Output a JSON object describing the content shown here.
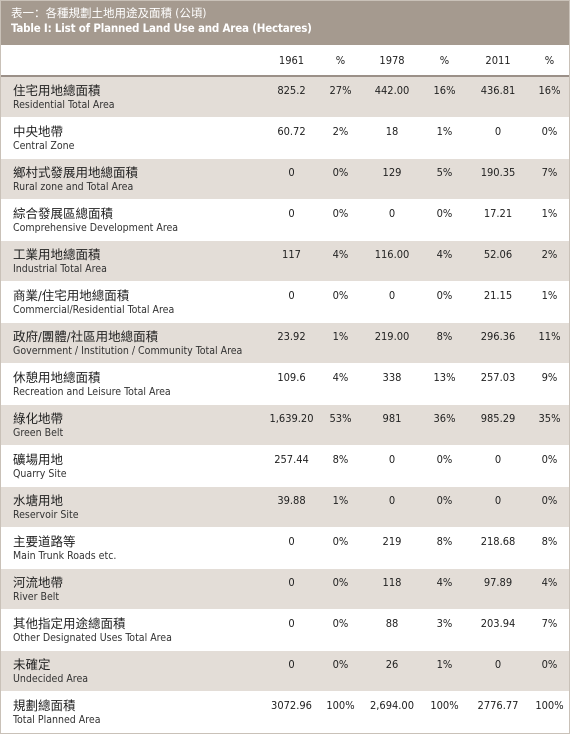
{
  "caption": {
    "zh": "表一：各種規劃土地用途及面積 (公頃)",
    "en": "Table I: List of Planned Land Use and Area (Hectares)"
  },
  "headers": [
    "1961",
    "%",
    "1978",
    "%",
    "2011",
    "%"
  ],
  "rows": [
    {
      "zh": "住宅用地總面積",
      "en": "Residential Total Area",
      "v1961": "825.2",
      "p1961": "27%",
      "v1978": "442.00",
      "p1978": "16%",
      "v2011": "436.81",
      "p2011": "16%"
    },
    {
      "zh": "中央地帶",
      "en": "Central Zone",
      "v1961": "60.72",
      "p1961": "2%",
      "v1978": "18",
      "p1978": "1%",
      "v2011": "0",
      "p2011": "0%"
    },
    {
      "zh": "鄉村式發展用地總面積",
      "en": "Rural zone and Total Area",
      "v1961": "0",
      "p1961": "0%",
      "v1978": "129",
      "p1978": "5%",
      "v2011": "190.35",
      "p2011": "7%"
    },
    {
      "zh": "綜合發展區總面積",
      "en": "Comprehensive Development Area",
      "v1961": "0",
      "p1961": "0%",
      "v1978": "0",
      "p1978": "0%",
      "v2011": "17.21",
      "p2011": "1%"
    },
    {
      "zh": "工業用地總面積",
      "en": "Industrial Total Area",
      "v1961": "117",
      "p1961": "4%",
      "v1978": "116.00",
      "p1978": "4%",
      "v2011": "52.06",
      "p2011": "2%"
    },
    {
      "zh": "商業/住宅用地總面積",
      "en": "Commercial/Residential Total Area",
      "v1961": "0",
      "p1961": "0%",
      "v1978": "0",
      "p1978": "0%",
      "v2011": "21.15",
      "p2011": "1%"
    },
    {
      "zh": "政府/團體/社區用地總面積",
      "en": "Government / Institution / Community Total Area",
      "v1961": "23.92",
      "p1961": "1%",
      "v1978": "219.00",
      "p1978": "8%",
      "v2011": "296.36",
      "p2011": "11%"
    },
    {
      "zh": "休憩用地總面積",
      "en": "Recreation and Leisure Total Area",
      "v1961": "109.6",
      "p1961": "4%",
      "v1978": "338",
      "p1978": "13%",
      "v2011": "257.03",
      "p2011": "9%"
    },
    {
      "zh": "綠化地帶",
      "en": "Green Belt",
      "v1961": "1,639.20",
      "p1961": "53%",
      "v1978": "981",
      "p1978": "36%",
      "v2011": "985.29",
      "p2011": "35%"
    },
    {
      "zh": "礦場用地",
      "en": "Quarry Site",
      "v1961": "257.44",
      "p1961": "8%",
      "v1978": "0",
      "p1978": "0%",
      "v2011": "0",
      "p2011": "0%"
    },
    {
      "zh": "水塘用地",
      "en": "Reservoir Site",
      "v1961": "39.88",
      "p1961": "1%",
      "v1978": "0",
      "p1978": "0%",
      "v2011": "0",
      "p2011": "0%"
    },
    {
      "zh": "主要道路等",
      "en": "Main Trunk Roads etc.",
      "v1961": "0",
      "p1961": "0%",
      "v1978": "219",
      "p1978": "8%",
      "v2011": "218.68",
      "p2011": "8%"
    },
    {
      "zh": "河流地帶",
      "en": "River Belt",
      "v1961": "0",
      "p1961": "0%",
      "v1978": "118",
      "p1978": "4%",
      "v2011": "97.89",
      "p2011": "4%"
    },
    {
      "zh": "其他指定用途總面積",
      "en": "Other Designated Uses Total Area",
      "v1961": "0",
      "p1961": "0%",
      "v1978": "88",
      "p1978": "3%",
      "v2011": "203.94",
      "p2011": "7%"
    },
    {
      "zh": "未確定",
      "en": "Undecided Area",
      "v1961": "0",
      "p1961": "0%",
      "v1978": "26",
      "p1978": "1%",
      "v2011": "0",
      "p2011": "0%"
    },
    {
      "zh": "規劃總面積",
      "en": "Total Planned Area",
      "v1961": "3072.96",
      "p1961": "100%",
      "v1978": "2,694.00",
      "p1978": "100%",
      "v2011": "2776.77",
      "p2011": "100%"
    }
  ]
}
